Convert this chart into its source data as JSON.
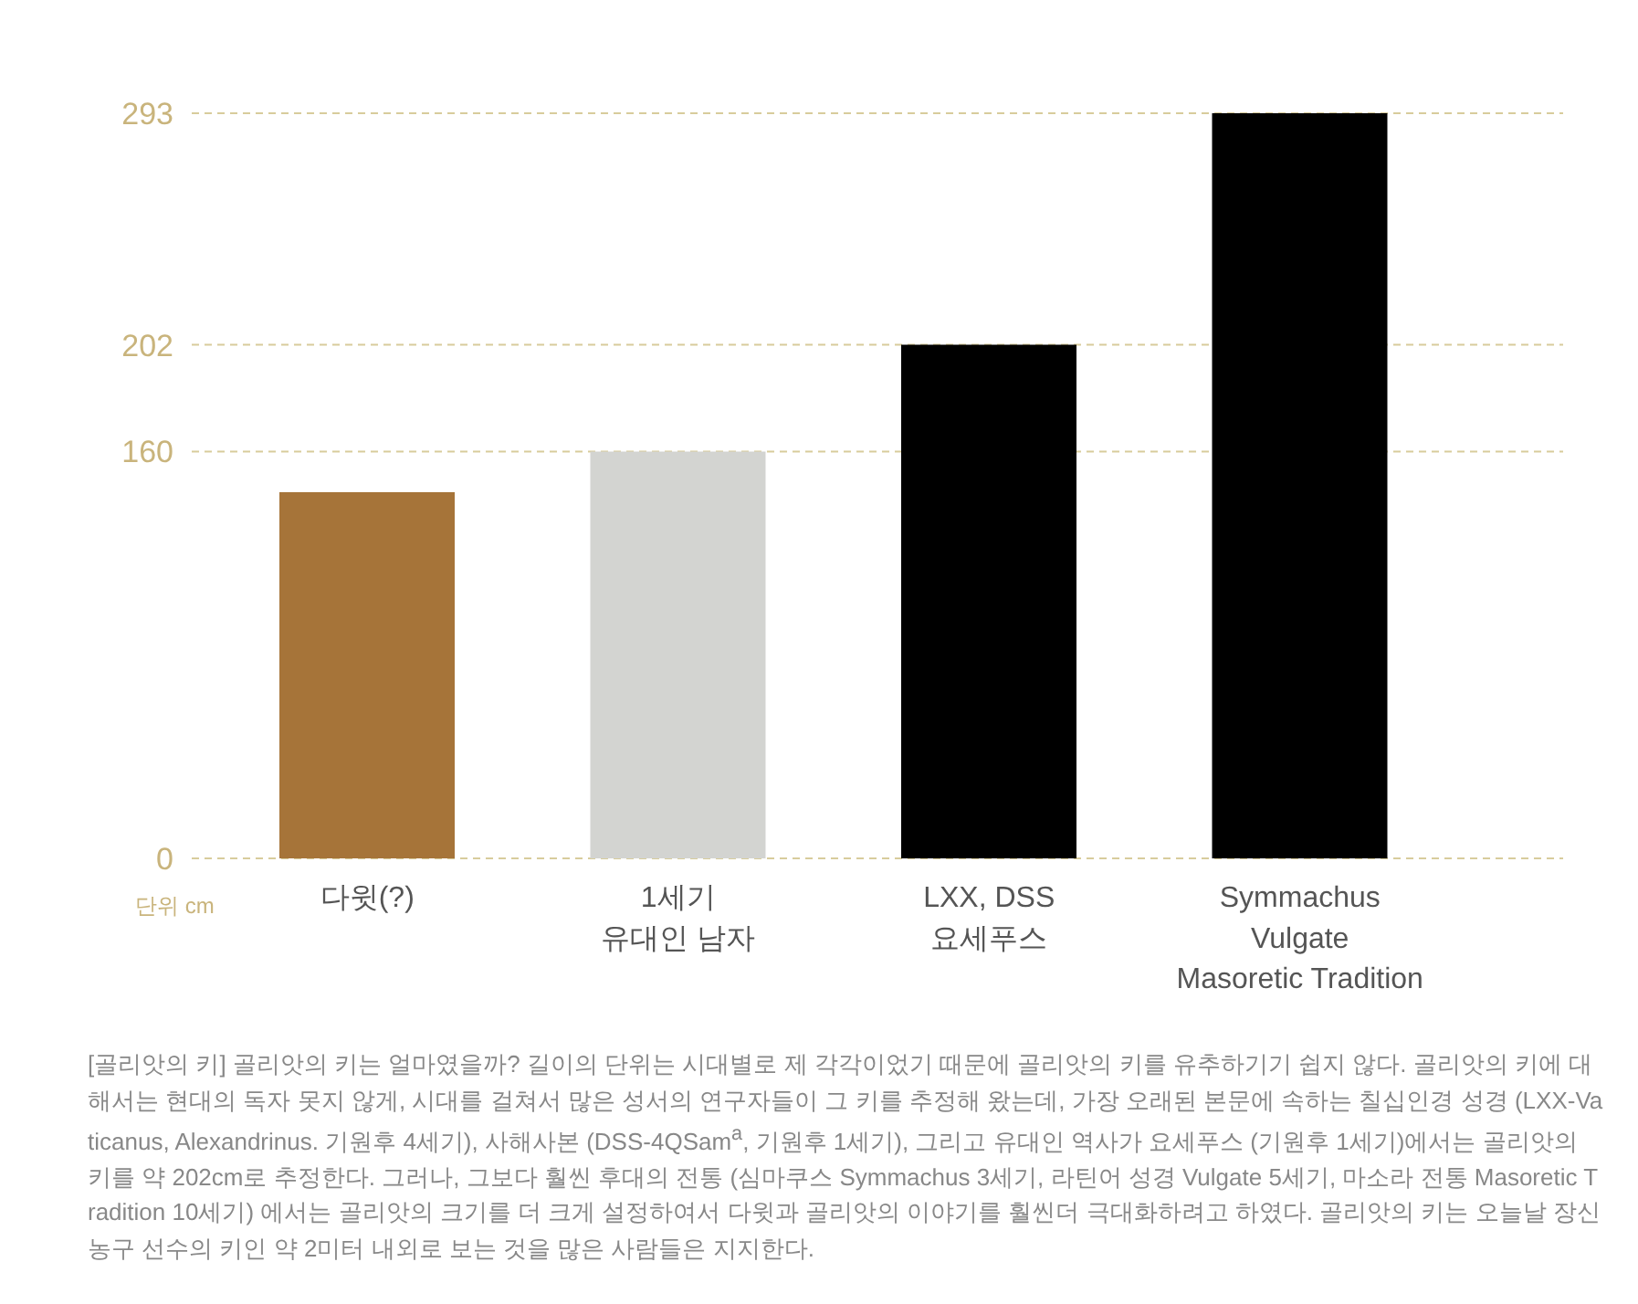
{
  "chart_data": {
    "type": "bar",
    "categories": [
      "다윗(?)",
      "1세기\n유대인 남자",
      "LXX, DSS\n요세푸스",
      "Symmachus\nVulgate\nMasoretic Tradition"
    ],
    "values": [
      144,
      160,
      202,
      293
    ],
    "colors": [
      "#a67439",
      "#d3d4d1",
      "#000000",
      "#000000"
    ],
    "ylim": [
      0,
      293
    ],
    "yticks": [
      0,
      160,
      202,
      293
    ],
    "grid": "y",
    "annotations": [
      "단위 cm",
      "[골리앗의 키] 골리앗의 키는 얼마였을까? 길이의 단위는 시대별로 제 각각이었기 때문에 골리앗의 키를 유추하기기 쉽지 않다. 골리앗의 키에 대해서는 현대의 독자 못지 않게, 시대를 걸쳐서 많은 성서의 연구자들이 그 키를 추정해 왔는데, 가장 오래된 본문에 속하는 칠십인경 성경 (LXX-Vaticanus, Alexandrinus. 기원후 4세기), 사해사본 (DSS-4QSam$^{a}$, 기원후 1세기), 그리고 유대인 역사가 요세푸스 (기원후 1세기)에서는 골리앗의 키를 약 202cm로 추정한다. 그러나, 그보다 훨씬 후대의 전통 (심마쿠스 Symmachus 3세기, 라틴어 성경 Vulgate 5세기, 마소라 전통 Masoretic Tradition 10세기) 에서는 골리앗의 크기를 더 크게 설정하여서 다윗과 골리앗의 이야기를 훨씬더 극대화하려고 하였다. 골리앗의 키는 오늘날 장신 농구 선수의 키인 약 2미터 내외로 보는 것을 많은 사람들은 지지한다."
    ]
  }
}
